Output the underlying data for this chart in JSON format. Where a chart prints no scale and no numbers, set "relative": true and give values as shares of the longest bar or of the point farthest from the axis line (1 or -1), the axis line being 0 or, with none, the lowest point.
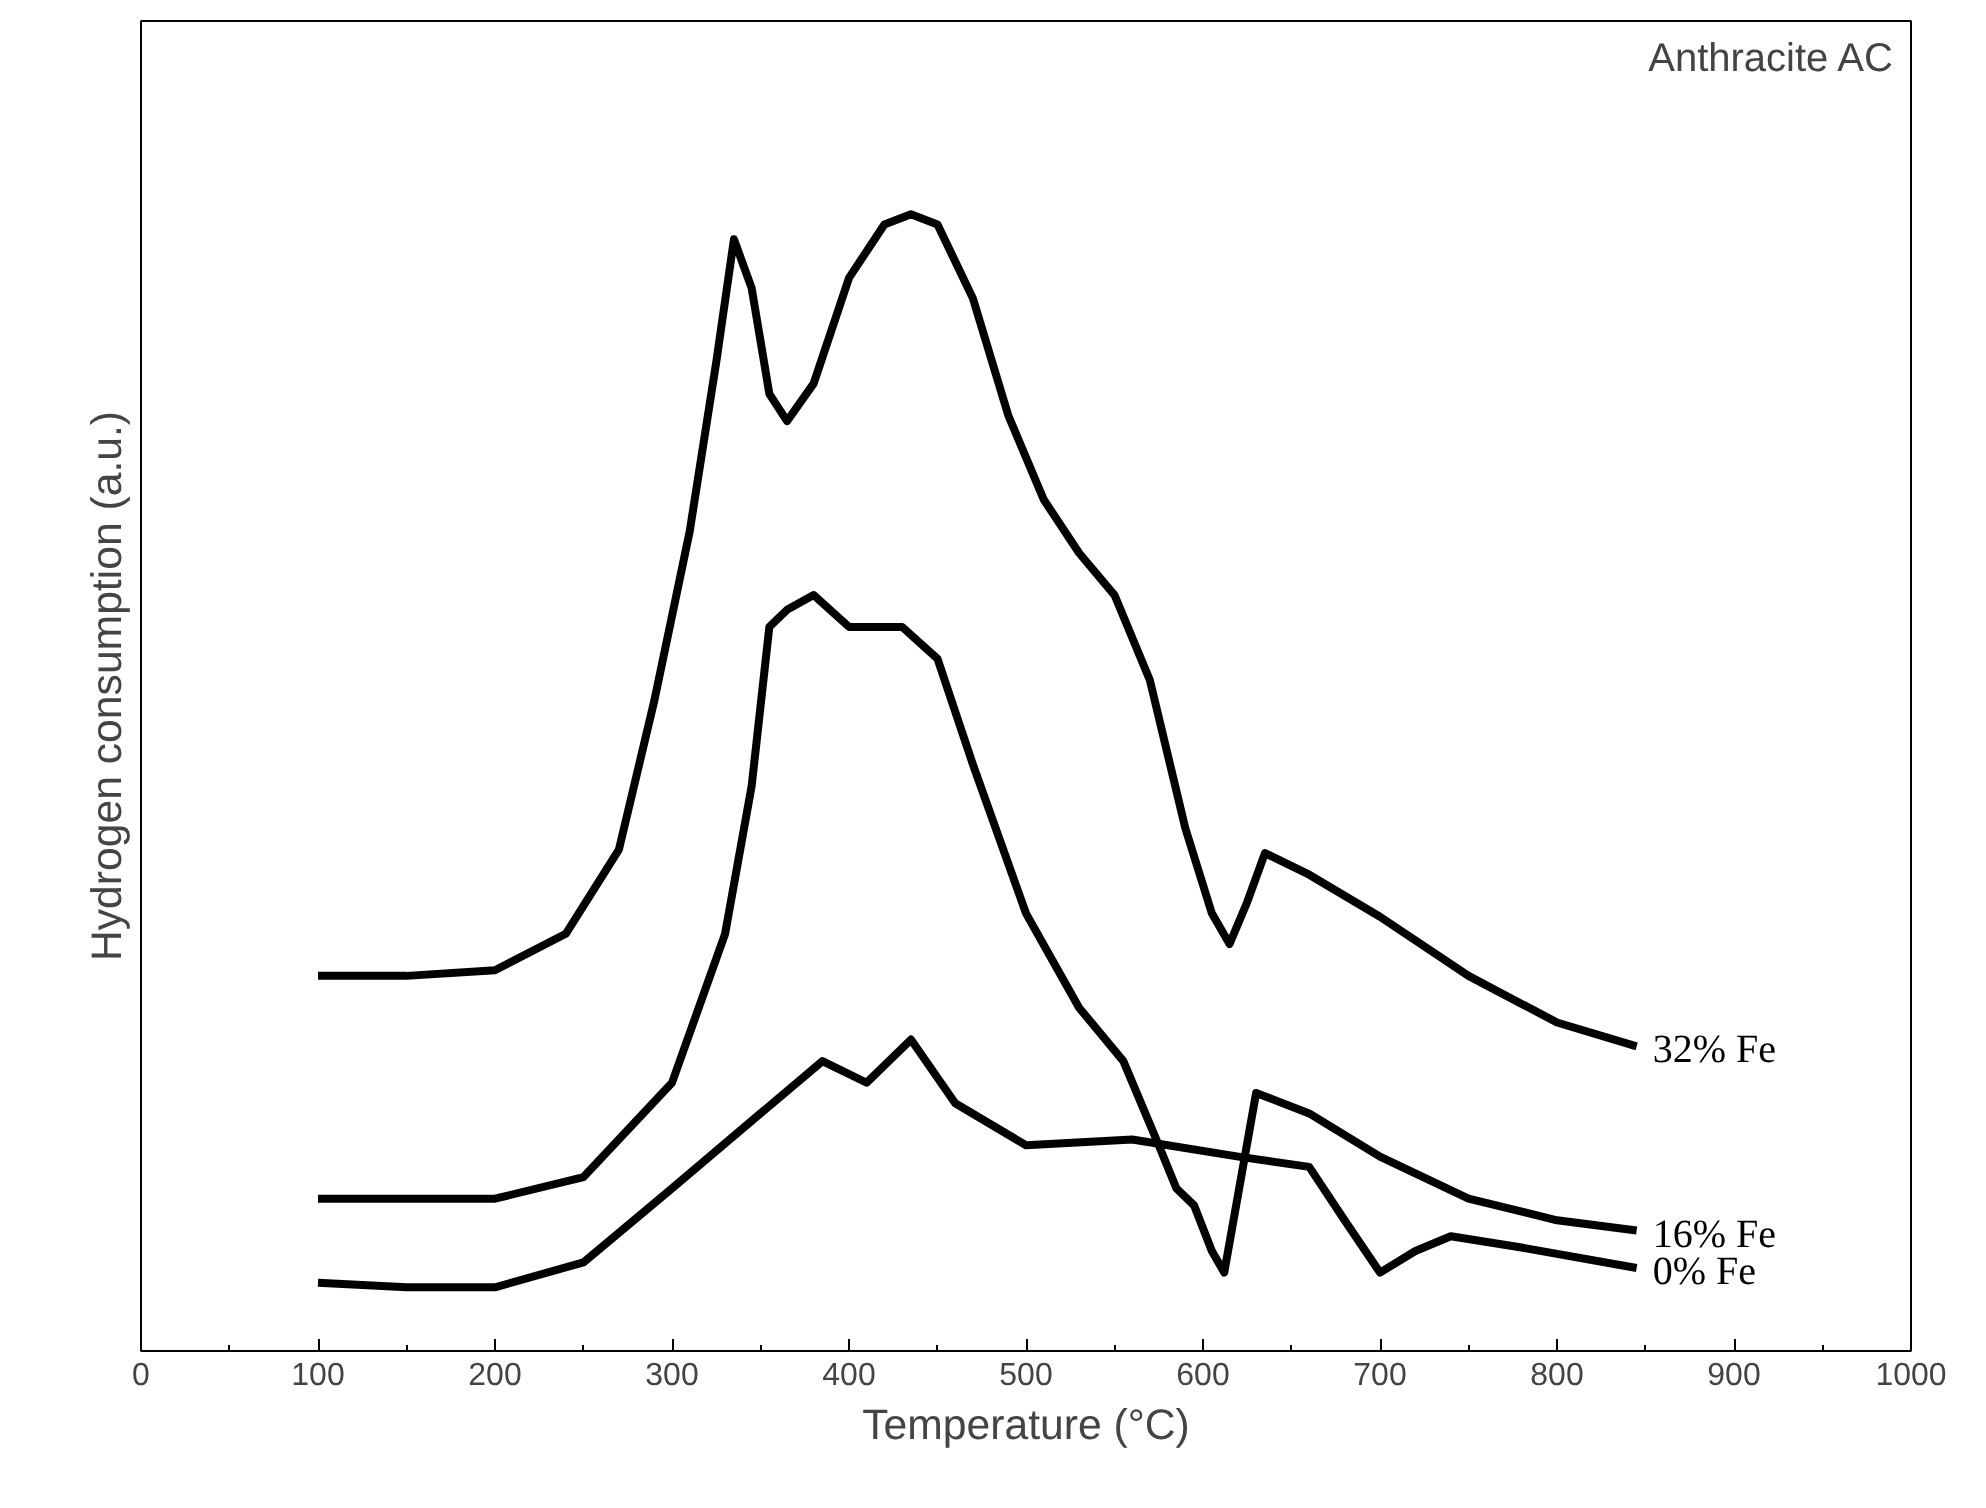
{
  "chart_data": {
    "type": "line",
    "relative": true,
    "xlabel": "Temperature (°C)",
    "ylabel": "Hydrogen consumption (a.u.)",
    "xlim": [
      0,
      1000
    ],
    "xticks": [
      0,
      100,
      200,
      300,
      400,
      500,
      600,
      700,
      800,
      900,
      1000
    ],
    "tick_labels": "x",
    "grid": false,
    "marker": "none",
    "line_style": "solid",
    "annotations": [
      "Anthracite AC"
    ],
    "series": [
      {
        "name": "32% Fe",
        "color": "#000000",
        "x": [
          100,
          150,
          200,
          240,
          270,
          290,
          310,
          325,
          335,
          345,
          355,
          365,
          380,
          400,
          420,
          435,
          450,
          470,
          490,
          510,
          530,
          550,
          570,
          590,
          605,
          615,
          625,
          635,
          660,
          700,
          750,
          800,
          845
        ],
        "values": [
          0.33,
          0.33,
          0.335,
          0.367,
          0.441,
          0.572,
          0.721,
          0.87,
          0.978,
          0.935,
          0.842,
          0.818,
          0.851,
          0.944,
          0.991,
          1.0,
          0.991,
          0.926,
          0.823,
          0.749,
          0.702,
          0.665,
          0.59,
          0.46,
          0.385,
          0.358,
          0.395,
          0.438,
          0.419,
          0.382,
          0.33,
          0.289,
          0.268
        ]
      },
      {
        "name": "16% Fe",
        "color": "#000000",
        "x": [
          100,
          200,
          250,
          300,
          330,
          345,
          355,
          365,
          380,
          400,
          430,
          450,
          470,
          500,
          530,
          555,
          575,
          585,
          595,
          605,
          612,
          630,
          660,
          700,
          750,
          800,
          845
        ],
        "values": [
          0.134,
          0.134,
          0.153,
          0.236,
          0.367,
          0.497,
          0.637,
          0.652,
          0.665,
          0.637,
          0.637,
          0.609,
          0.516,
          0.385,
          0.302,
          0.255,
          0.181,
          0.143,
          0.128,
          0.088,
          0.069,
          0.227,
          0.209,
          0.171,
          0.134,
          0.115,
          0.106
        ]
      },
      {
        "name": "0% Fe",
        "color": "#000000",
        "x": [
          100,
          150,
          200,
          250,
          300,
          350,
          385,
          410,
          435,
          460,
          500,
          560,
          620,
          660,
          680,
          700,
          720,
          740,
          780,
          845
        ],
        "values": [
          0.06,
          0.056,
          0.056,
          0.078,
          0.143,
          0.209,
          0.255,
          0.236,
          0.274,
          0.218,
          0.181,
          0.186,
          0.171,
          0.162,
          0.115,
          0.069,
          0.088,
          0.101,
          0.091,
          0.073
        ]
      }
    ]
  }
}
